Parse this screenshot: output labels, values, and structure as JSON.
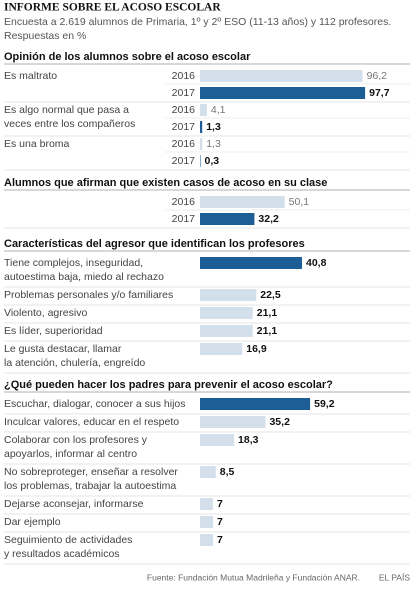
{
  "title": "INFORME SOBRE EL ACOSO ESCOLAR",
  "subtitle": [
    "Encuesta a 2.619 alumnos de Primaria, 1º y 2º ESO (11-13 años) y 112 profesores.",
    "Respuestas en %"
  ],
  "chart_data": [
    {
      "type": "bar",
      "title": "Opinión de los alumnos sobre el acoso escolar",
      "categories": [
        [
          "Es maltrato"
        ],
        [
          "Es algo normal que pasa a",
          "veces entre los compañeros"
        ],
        [
          "Es una broma"
        ]
      ],
      "series": [
        {
          "name": "2016",
          "color": "#d3e0ec",
          "values": [
            96.2,
            4.1,
            1.3
          ],
          "value_labels": [
            "96,2",
            "4,1",
            "1,3"
          ]
        },
        {
          "name": "2017",
          "color": "#1d5e96",
          "values": [
            97.7,
            1.3,
            0.3
          ],
          "value_labels": [
            "97,7",
            "1,3",
            "0,3"
          ]
        }
      ]
    },
    {
      "type": "bar",
      "title": "Alumnos que afirman que existen casos de acoso en su clase",
      "categories": [
        null
      ],
      "series": [
        {
          "name": "2016",
          "color": "#d3e0ec",
          "values": [
            50.1
          ],
          "value_labels": [
            "50,1"
          ]
        },
        {
          "name": "2017",
          "color": "#1d5e96",
          "values": [
            32.2
          ],
          "value_labels": [
            "32,2"
          ]
        }
      ]
    },
    {
      "type": "bar",
      "title": "Características del agresor que identifican los profesores",
      "categories": [
        [
          "Tiene complejos, inseguridad,",
          "autoestima  baja, miedo al rechazo"
        ],
        [
          "Problemas personales  y/o familiares"
        ],
        [
          "Violento, agresivo"
        ],
        [
          "Es líder, superioridad"
        ],
        [
          "Le gusta destacar, llamar",
          "la atención, chulería, engreído"
        ]
      ],
      "values": [
        40.8,
        22.5,
        21.1,
        21.1,
        16.9
      ],
      "value_labels": [
        "40,8",
        "22,5",
        "21,1",
        "21,1",
        "16,9"
      ],
      "colors": [
        "#1d5e96",
        "#d3e0ec",
        "#d3e0ec",
        "#d3e0ec",
        "#d3e0ec"
      ]
    },
    {
      "type": "bar",
      "title": "¿Qué pueden hacer los padres para prevenir el acoso escolar?",
      "categories": [
        [
          "Escuchar, dialogar, conocer a sus hijos"
        ],
        [
          "Inculcar valores, educar en el respeto"
        ],
        [
          "Colaborar con los profesores y",
          "apoyarlos, informar al centro"
        ],
        [
          "No sobreproteger, enseñar a resolver",
          "los problemas, trabajar la autoestima"
        ],
        [
          "Dejarse aconsejar, informarse"
        ],
        [
          "Dar ejemplo"
        ],
        [
          "Seguimiento de actividades",
          "y resultados académicos"
        ]
      ],
      "values": [
        59.2,
        35.2,
        18.3,
        8.5,
        7,
        7,
        7
      ],
      "value_labels": [
        "59,2",
        "35,2",
        "18,3",
        "8,5",
        "7",
        "7",
        "7"
      ],
      "colors": [
        "#1d5e96",
        "#d3e0ec",
        "#d3e0ec",
        "#d3e0ec",
        "#d3e0ec",
        "#d3e0ec",
        "#d3e0ec"
      ]
    }
  ],
  "source": "Fuente: Fundación Mutua Madrileña y Fundación ANAR.",
  "credit": "EL PAÍS"
}
